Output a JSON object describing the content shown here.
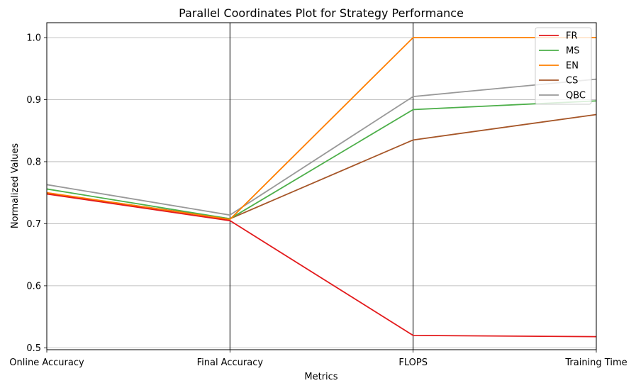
{
  "chart_data": {
    "type": "line",
    "title": "Parallel Coordinates Plot for Strategy Performance",
    "xlabel": "Metrics",
    "ylabel": "Normalized Values",
    "categories": [
      "Online Accuracy",
      "Final Accuracy",
      "FLOPS",
      "Training Time"
    ],
    "ylim": [
      0.497,
      1.024
    ],
    "yticks": [
      0.5,
      0.6,
      0.7,
      0.8,
      0.9,
      1.0
    ],
    "ytick_labels": [
      "0.5",
      "0.6",
      "0.7",
      "0.8",
      "0.9",
      "1.0"
    ],
    "grid": true,
    "legend_position": "top-right",
    "series": [
      {
        "name": "FR",
        "color": "#e31a1c",
        "values": [
          0.748,
          0.705,
          0.52,
          0.518
        ]
      },
      {
        "name": "MS",
        "color": "#4daf4a",
        "values": [
          0.756,
          0.708,
          0.884,
          0.898
        ]
      },
      {
        "name": "EN",
        "color": "#ff7f00",
        "values": [
          0.75,
          0.707,
          1.0,
          1.0
        ]
      },
      {
        "name": "CS",
        "color": "#a65628",
        "values": [
          0.749,
          0.708,
          0.835,
          0.876
        ]
      },
      {
        "name": "QBC",
        "color": "#999999",
        "values": [
          0.763,
          0.714,
          0.905,
          0.933
        ]
      }
    ]
  }
}
